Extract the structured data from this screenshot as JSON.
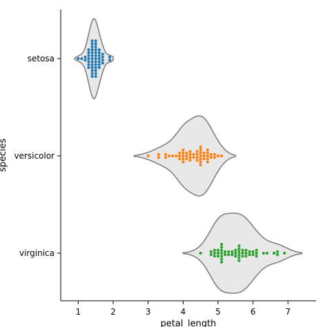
{
  "chart_data": {
    "type": "violin-swarm",
    "title": "",
    "xlabel": "petal_length",
    "ylabel": "species",
    "xlim": [
      0.5,
      7.8
    ],
    "x_ticks": [
      1,
      2,
      3,
      4,
      5,
      6,
      7
    ],
    "grid": false,
    "categories": [
      "setosa",
      "versicolor",
      "virginica"
    ],
    "series": [
      {
        "category": "setosa",
        "color": "#1f77b4",
        "violin_range": [
          0.9,
          2.0
        ],
        "points": [
          1.0,
          1.1,
          1.2,
          1.2,
          1.3,
          1.3,
          1.3,
          1.3,
          1.3,
          1.3,
          1.3,
          1.4,
          1.4,
          1.4,
          1.4,
          1.4,
          1.4,
          1.4,
          1.4,
          1.4,
          1.4,
          1.4,
          1.4,
          1.4,
          1.5,
          1.5,
          1.5,
          1.5,
          1.5,
          1.5,
          1.5,
          1.5,
          1.5,
          1.5,
          1.5,
          1.5,
          1.5,
          1.6,
          1.6,
          1.6,
          1.6,
          1.6,
          1.6,
          1.6,
          1.7,
          1.7,
          1.7,
          1.7,
          1.9,
          1.9
        ]
      },
      {
        "category": "versicolor",
        "color": "#ff7f0e",
        "violin_range": [
          2.6,
          5.5
        ],
        "points": [
          3.0,
          3.3,
          3.3,
          3.5,
          3.5,
          3.6,
          3.7,
          3.8,
          3.9,
          3.9,
          3.9,
          4.0,
          4.0,
          4.0,
          4.0,
          4.0,
          4.1,
          4.1,
          4.1,
          4.2,
          4.2,
          4.2,
          4.2,
          4.3,
          4.3,
          4.4,
          4.4,
          4.4,
          4.4,
          4.5,
          4.5,
          4.5,
          4.5,
          4.5,
          4.5,
          4.5,
          4.6,
          4.6,
          4.6,
          4.7,
          4.7,
          4.7,
          4.7,
          4.7,
          4.8,
          4.8,
          4.9,
          4.9,
          5.0,
          5.1
        ]
      },
      {
        "category": "virginica",
        "color": "#2ca02c",
        "violin_range": [
          4.0,
          7.4
        ],
        "points": [
          4.5,
          4.8,
          4.8,
          4.9,
          4.9,
          4.9,
          5.0,
          5.0,
          5.0,
          5.1,
          5.1,
          5.1,
          5.1,
          5.1,
          5.1,
          5.1,
          5.2,
          5.2,
          5.3,
          5.3,
          5.4,
          5.4,
          5.5,
          5.5,
          5.5,
          5.6,
          5.6,
          5.6,
          5.6,
          5.6,
          5.6,
          5.7,
          5.7,
          5.7,
          5.8,
          5.8,
          5.8,
          5.9,
          5.9,
          6.0,
          6.0,
          6.1,
          6.1,
          6.1,
          6.3,
          6.4,
          6.6,
          6.7,
          6.7,
          6.9
        ]
      }
    ]
  }
}
